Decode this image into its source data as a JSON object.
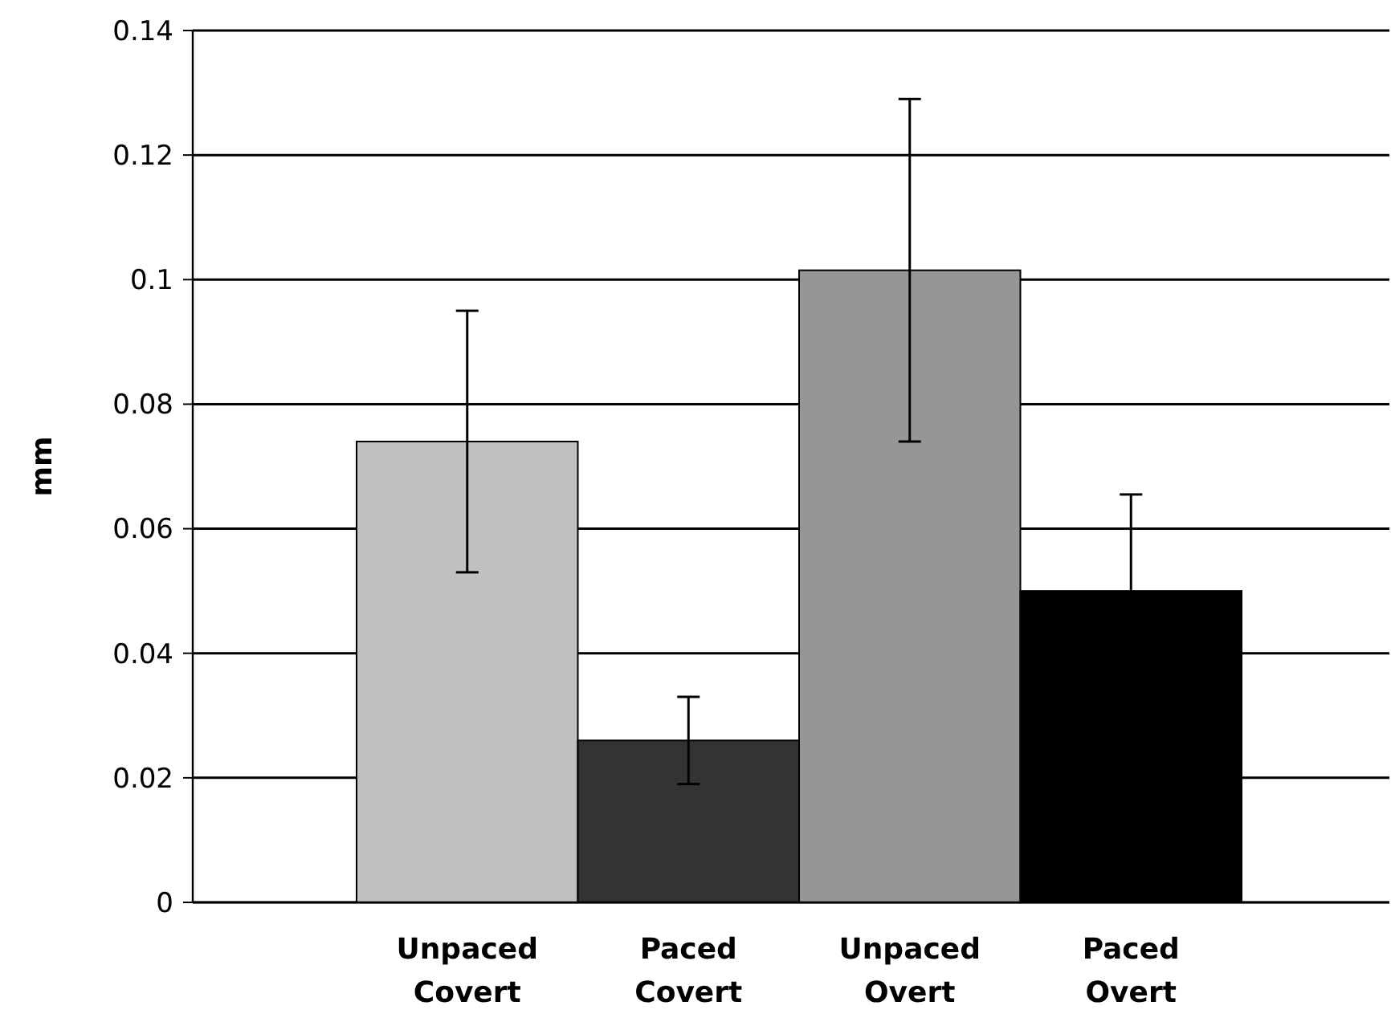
{
  "chart_data": {
    "type": "bar",
    "ylabel": "mm",
    "categories": [
      "Unpaced Covert",
      "Paced Covert",
      "Unpaced Overt",
      "Paced Overt"
    ],
    "values": [
      0.074,
      0.026,
      0.1015,
      0.05
    ],
    "colors": [
      "#c0c0c0",
      "#333333",
      "#969696",
      "#000000"
    ],
    "errors": [
      0.021,
      0.007,
      0.0275,
      0.0155
    ],
    "ylim": [
      0,
      0.14
    ],
    "yticks": [
      0,
      0.02,
      0.04,
      0.06,
      0.08,
      0.1,
      0.12,
      0.14
    ],
    "grid": "y"
  }
}
